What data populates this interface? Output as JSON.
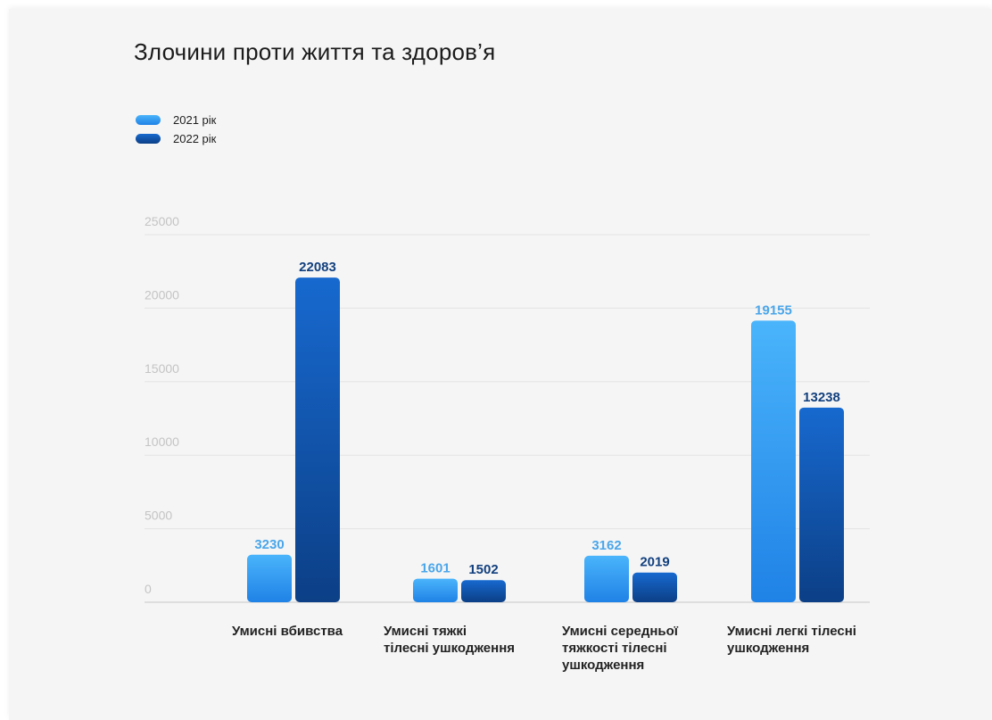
{
  "chart_data": {
    "type": "bar",
    "title": "Злочини проти життя та здоров’я",
    "categories": [
      [
        "Умисні вбивства"
      ],
      [
        "Умисні тяжкі",
        "тілесні ушкодження"
      ],
      [
        "Умисні середньої",
        "тяжкості тілесні",
        "ушкодження"
      ],
      [
        "Умисні легкі тілесні",
        "ушкодження"
      ]
    ],
    "series": [
      {
        "name": "2021 рік",
        "values": [
          3230,
          1601,
          3162,
          19155
        ],
        "color": "#2f96ec"
      },
      {
        "name": "2022 рік",
        "values": [
          22083,
          1502,
          2019,
          13238
        ],
        "color": "#0e4f9f"
      }
    ],
    "yticks": [
      "0",
      "5000",
      "10000",
      "15000",
      "20000",
      "25000"
    ],
    "ylim": [
      0,
      25000
    ],
    "grid": true,
    "legend_position": "top-left",
    "label_colors": [
      "#4aa6ea",
      "#12407e"
    ],
    "gradients": {
      "s2021": [
        "#4ab4fb",
        "#1f82e6"
      ],
      "s2022": [
        "#1769cf",
        "#0c3f86"
      ]
    }
  }
}
